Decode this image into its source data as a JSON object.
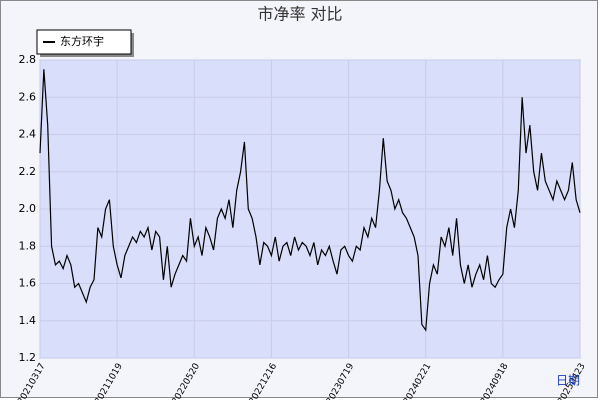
{
  "chart_data": {
    "type": "line",
    "title": "市净率 对比",
    "x_label": "日期",
    "categories": [
      "20210317",
      null,
      null,
      null,
      null,
      null,
      null,
      null,
      null,
      null,
      null,
      null,
      null,
      null,
      null,
      null,
      null,
      null,
      null,
      null,
      "20211019",
      null,
      null,
      null,
      null,
      null,
      null,
      null,
      null,
      null,
      null,
      null,
      null,
      null,
      null,
      null,
      null,
      null,
      null,
      null,
      "20220520",
      null,
      null,
      null,
      null,
      null,
      null,
      null,
      null,
      null,
      null,
      null,
      null,
      null,
      null,
      null,
      null,
      null,
      null,
      null,
      "20221216",
      null,
      null,
      null,
      null,
      null,
      null,
      null,
      null,
      null,
      null,
      null,
      null,
      null,
      null,
      null,
      null,
      null,
      null,
      null,
      "20230719",
      null,
      null,
      null,
      null,
      null,
      null,
      null,
      null,
      null,
      null,
      null,
      null,
      null,
      null,
      null,
      null,
      null,
      null,
      null,
      "20240221",
      null,
      null,
      null,
      null,
      null,
      null,
      null,
      null,
      null,
      null,
      null,
      null,
      null,
      null,
      null,
      null,
      null,
      null,
      null,
      "20240918",
      null,
      null,
      null,
      null,
      null,
      null,
      null,
      null,
      null,
      null,
      null,
      null,
      null,
      null,
      null,
      null,
      null,
      null,
      null,
      "20250423"
    ],
    "series": [
      {
        "name": "东方环宇",
        "color": "#000000",
        "values": [
          2.3,
          2.75,
          2.45,
          1.8,
          1.7,
          1.72,
          1.68,
          1.75,
          1.7,
          1.58,
          1.6,
          1.55,
          1.5,
          1.58,
          1.62,
          1.9,
          1.85,
          2.0,
          2.05,
          1.8,
          1.7,
          1.63,
          1.75,
          1.8,
          1.85,
          1.82,
          1.88,
          1.85,
          1.9,
          1.78,
          1.88,
          1.85,
          1.62,
          1.8,
          1.58,
          1.65,
          1.7,
          1.75,
          1.72,
          1.95,
          1.8,
          1.85,
          1.75,
          1.9,
          1.85,
          1.78,
          1.95,
          2.0,
          1.95,
          2.05,
          1.9,
          2.1,
          2.2,
          2.36,
          2.0,
          1.95,
          1.85,
          1.7,
          1.82,
          1.8,
          1.75,
          1.85,
          1.72,
          1.8,
          1.82,
          1.75,
          1.85,
          1.78,
          1.82,
          1.8,
          1.75,
          1.82,
          1.7,
          1.78,
          1.75,
          1.8,
          1.72,
          1.65,
          1.78,
          1.8,
          1.75,
          1.72,
          1.8,
          1.78,
          1.9,
          1.85,
          1.95,
          1.9,
          2.1,
          2.38,
          2.15,
          2.1,
          2.0,
          2.05,
          1.98,
          1.95,
          1.9,
          1.85,
          1.75,
          1.38,
          1.35,
          1.6,
          1.7,
          1.65,
          1.85,
          1.8,
          1.9,
          1.75,
          1.95,
          1.7,
          1.6,
          1.7,
          1.58,
          1.65,
          1.7,
          1.62,
          1.75,
          1.6,
          1.58,
          1.62,
          1.65,
          1.9,
          2.0,
          1.9,
          2.1,
          2.6,
          2.3,
          2.45,
          2.2,
          2.1,
          2.3,
          2.15,
          2.1,
          2.05,
          2.15,
          2.1,
          2.05,
          2.1,
          2.25,
          2.05,
          1.98
        ]
      }
    ],
    "ylim": [
      1.2,
      2.8
    ],
    "yticks": [
      1.2,
      1.4,
      1.6,
      1.8,
      {
        "value": 2,
        "label": "2.0"
      },
      2.2,
      2.4,
      2.6,
      2.8
    ],
    "grid": true,
    "legend": "top-left"
  }
}
